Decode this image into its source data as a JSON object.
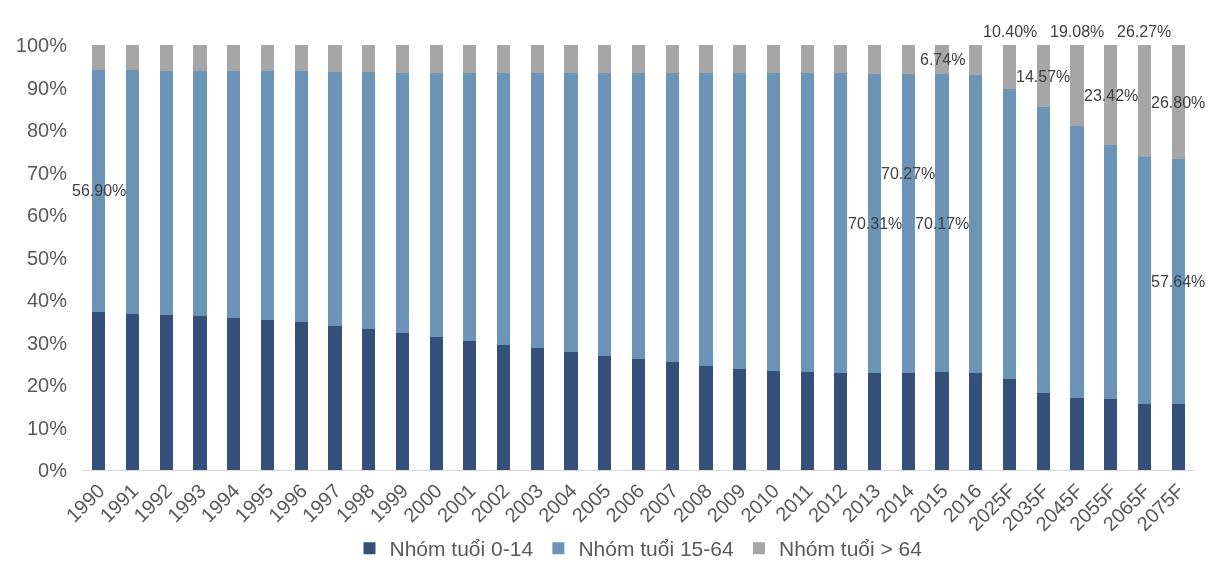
{
  "chart_data": {
    "type": "bar",
    "stacked": true,
    "categories": [
      "1990",
      "1991",
      "1992",
      "1993",
      "1994",
      "1995",
      "1996",
      "1997",
      "1998",
      "1999",
      "2000",
      "2001",
      "2002",
      "2003",
      "2004",
      "2005",
      "2006",
      "2007",
      "2008",
      "2009",
      "2010",
      "2011",
      "2012",
      "2013",
      "2014",
      "2015",
      "2016",
      "2025F",
      "2035F",
      "2045F",
      "2055F",
      "2065F",
      "2075F"
    ],
    "series": [
      {
        "name": "Nhóm tuổi 0-14",
        "color": "#34507a",
        "values": [
          37.2,
          36.8,
          36.5,
          36.2,
          35.8,
          35.3,
          34.8,
          34.0,
          33.2,
          32.2,
          31.4,
          30.4,
          29.4,
          28.6,
          27.8,
          26.8,
          26.1,
          25.4,
          24.5,
          23.8,
          23.4,
          23.1,
          22.9,
          22.8,
          22.9,
          23.0,
          22.9,
          21.5,
          18.1,
          16.9,
          16.6,
          15.6,
          15.5
        ]
      },
      {
        "name": "Nhóm tuổi 15-64",
        "color": "#6b94b7",
        "values": [
          56.9,
          57.3,
          57.5,
          57.8,
          58.1,
          58.6,
          59.0,
          59.7,
          60.4,
          61.3,
          62.0,
          63.0,
          63.9,
          64.7,
          65.5,
          66.5,
          67.2,
          67.9,
          68.8,
          69.5,
          69.9,
          70.2,
          70.4,
          70.31,
          70.27,
          70.17,
          70.0,
          68.1,
          67.3,
          64.0,
          59.9,
          58.1,
          57.64
        ],
        "value_labels": [
          "56.90%",
          null,
          null,
          null,
          null,
          null,
          null,
          null,
          null,
          null,
          null,
          null,
          null,
          null,
          null,
          null,
          null,
          null,
          null,
          null,
          null,
          null,
          null,
          "70.31%",
          "70.27%",
          "70.17%",
          null,
          null,
          null,
          null,
          null,
          null,
          "57.64%"
        ]
      },
      {
        "name": "Nhóm tuổi > 64",
        "color": "#a6a6a6",
        "values": [
          5.9,
          5.9,
          6.0,
          6.0,
          6.1,
          6.1,
          6.2,
          6.3,
          6.4,
          6.5,
          6.6,
          6.6,
          6.7,
          6.7,
          6.7,
          6.7,
          6.7,
          6.7,
          6.7,
          6.7,
          6.7,
          6.7,
          6.7,
          6.8,
          6.8,
          6.74,
          7.1,
          10.4,
          14.57,
          19.08,
          23.42,
          26.27,
          26.8
        ],
        "value_labels": [
          null,
          null,
          null,
          null,
          null,
          null,
          null,
          null,
          null,
          null,
          null,
          null,
          null,
          null,
          null,
          null,
          null,
          null,
          null,
          null,
          null,
          null,
          null,
          null,
          null,
          "6.74%",
          null,
          "10.40%",
          "14.57%",
          "19.08%",
          "23.42%",
          "26.27%",
          "26.80%"
        ]
      }
    ],
    "ylim": [
      0,
      100
    ],
    "yticks": [
      {
        "value": 0,
        "label": "0%"
      },
      {
        "value": 10,
        "label": "10%"
      },
      {
        "value": 20,
        "label": "20%"
      },
      {
        "value": 30,
        "label": "30%"
      },
      {
        "value": 40,
        "label": "40%"
      },
      {
        "value": 50,
        "label": "50%"
      },
      {
        "value": 60,
        "label": "60%"
      },
      {
        "value": 70,
        "label": "70%"
      },
      {
        "value": 80,
        "label": "80%"
      },
      {
        "value": 90,
        "label": "90%"
      },
      {
        "value": 100,
        "label": "100%"
      }
    ],
    "legend": "bottom"
  }
}
